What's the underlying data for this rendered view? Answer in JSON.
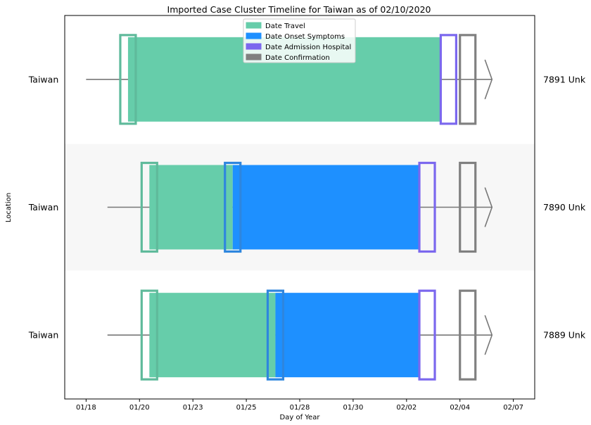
{
  "chart_data": {
    "type": "timeline",
    "title": "Imported Case Cluster Timeline for Taiwan as of 02/10/2020",
    "xlabel": "Day of Year",
    "ylabel": "Location",
    "x_ticks": [
      "01/18",
      "01/20",
      "01/23",
      "01/25",
      "01/28",
      "01/30",
      "02/02",
      "02/04",
      "02/07"
    ],
    "x_tick_days": [
      18,
      20.5,
      23,
      25.5,
      28,
      30.5,
      33,
      35.5,
      38
    ],
    "xlim": [
      17,
      39
    ],
    "legend": {
      "placement": "top-center",
      "entries": [
        {
          "label": "Date Travel",
          "color": "#66cdaa"
        },
        {
          "label": "Date Onset Symptoms",
          "color": "#1e90ff"
        },
        {
          "label": "Date Admission Hospital",
          "color": "#7b68ee"
        },
        {
          "label": "Date Confirmation",
          "color": "#808080"
        }
      ]
    },
    "colors": {
      "travel": "#66cdaa",
      "travel_marker": "#5fba9b",
      "onset": "#1e90ff",
      "onset_marker": "#2e86de",
      "admission": "#7b68ee",
      "confirmation": "#808080",
      "line": "#777777",
      "band": "#f7f7f7"
    },
    "cases": [
      {
        "location": "Taiwan",
        "id_label": "7891 Unk",
        "line_start": 18.0,
        "travel": 19.6,
        "onset": null,
        "admission": 34.6,
        "confirmation": 35.5,
        "line_end": 37.0
      },
      {
        "location": "Taiwan",
        "id_label": "7890 Unk",
        "line_start": 19.0,
        "travel": 20.6,
        "onset": 24.5,
        "admission": 33.6,
        "confirmation": 35.5,
        "line_end": 37.0
      },
      {
        "location": "Taiwan",
        "id_label": "7889 Unk",
        "line_start": 19.0,
        "travel": 20.6,
        "onset": 26.5,
        "admission": 33.6,
        "confirmation": 35.5,
        "line_end": 37.0
      }
    ]
  }
}
